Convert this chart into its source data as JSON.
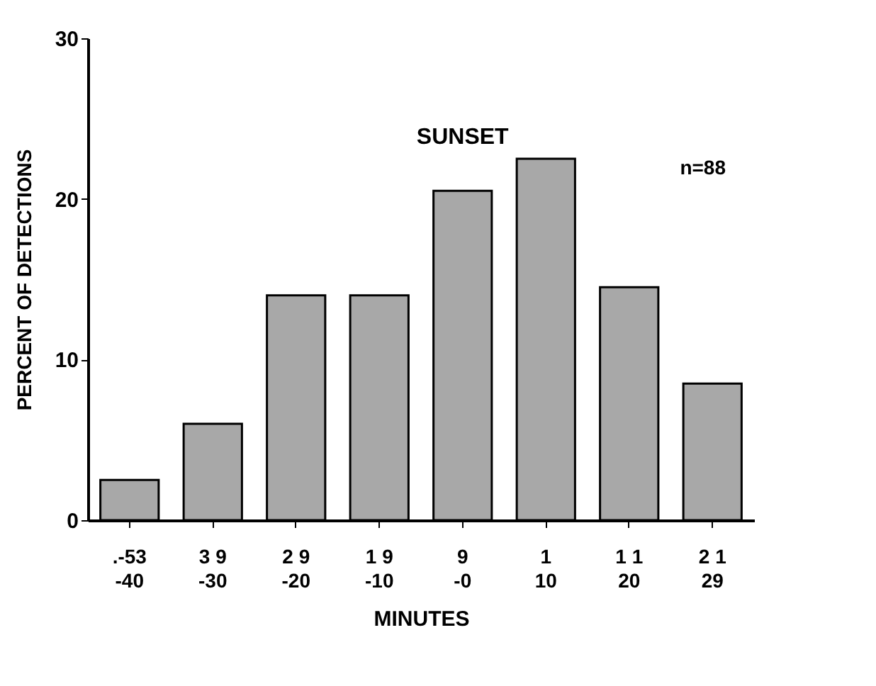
{
  "chart_data": {
    "type": "bar",
    "xlabel": "MINUTES",
    "ylabel": "PERCENT OF DETECTIONS",
    "categories": [
      ".-53\n-40",
      "3 9\n-30",
      "2 9\n-20",
      "1 9\n-10",
      "9\n-0",
      "1\n10",
      "1 1\n20",
      "2 1\n29"
    ],
    "values": [
      2.5,
      6,
      14,
      14,
      20.5,
      22.5,
      14.5,
      8.5
    ],
    "color": "#a8a8a8",
    "ylim": [
      0,
      30
    ],
    "yticks": [
      0,
      10,
      20,
      30
    ],
    "grid": false,
    "annotations": [
      {
        "text": "SUNSET",
        "x": "9\n-0",
        "y": 20.5
      },
      "n=88"
    ]
  }
}
